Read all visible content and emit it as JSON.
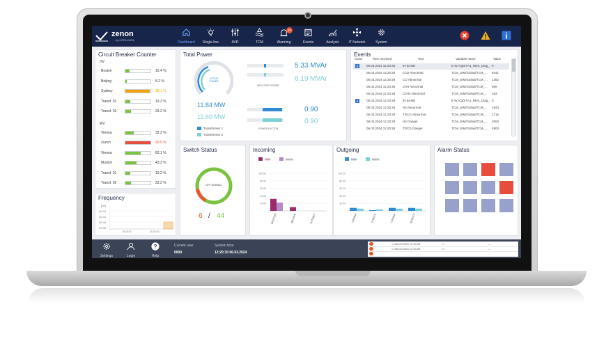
{
  "topbar": {
    "logo_text": "zenon",
    "logo_sub": "by COPA-DATA",
    "nav": [
      {
        "label": "Dashboard",
        "icon": "home-icon",
        "active": true
      },
      {
        "label": "Single line",
        "icon": "lightbulb-icon"
      },
      {
        "label": "AVR",
        "icon": "sliders-icon"
      },
      {
        "label": "TCM",
        "icon": "waves-icon"
      },
      {
        "label": "Alarming",
        "icon": "alarm-light-icon",
        "badge": "45"
      },
      {
        "label": "Events",
        "icon": "calendar-icon"
      },
      {
        "label": "Analysis",
        "icon": "chart-icon"
      },
      {
        "label": "IT Network",
        "icon": "network-icon"
      },
      {
        "label": "System",
        "icon": "gear-icon"
      }
    ]
  },
  "circuit_breaker": {
    "title": "Circuit Breaker Counter",
    "groups": [
      {
        "label": "HV",
        "rows": [
          {
            "name": "Boston",
            "value": "15.4 %",
            "pct": 15.4,
            "color": "#7cc242"
          },
          {
            "name": "Beijing",
            "value": "5.2 %",
            "pct": 5.2,
            "color": "#7cc242"
          },
          {
            "name": "Sydney",
            "value": "98.1 %",
            "pct": 98.1,
            "color": "#f0a30a"
          },
          {
            "name": "Transf. 01",
            "value": "19.2 %",
            "pct": 19.2,
            "color": "#7cc242"
          },
          {
            "name": "Transf. 02",
            "value": "23.2 %",
            "pct": 23.2,
            "color": "#7cc242"
          }
        ]
      },
      {
        "label": "MV",
        "rows": [
          {
            "name": "Vienna",
            "value": "33.2 %",
            "pct": 33.2,
            "color": "#7cc242"
          },
          {
            "name": "Zurich",
            "value": "99.5 %",
            "pct": 99.5,
            "color": "#e84c3d"
          },
          {
            "name": "Vienna",
            "value": "62.1 %",
            "pct": 62.1,
            "color": "#7cc242"
          },
          {
            "name": "Munich",
            "value": "43.2 %",
            "pct": 43.2,
            "color": "#7cc242"
          },
          {
            "name": "Transf. 01",
            "value": "19.2 %",
            "pct": 19.2,
            "color": "#7cc242"
          },
          {
            "name": "Transf. 02",
            "value": "23.2 %",
            "pct": 23.2,
            "color": "#7cc242"
          }
        ]
      }
    ]
  },
  "total_power": {
    "title": "Total Power",
    "gauge_label": "ACTIVE POWER",
    "active_mw_1": "11.84 MW",
    "active_mw_2": "11.60 MW",
    "reactive_1": "5.33 MVAr",
    "reactive_2": "6.19 MVAr",
    "reactive_label": "REACTIVE POWER",
    "pf_1": "0.90",
    "pf_2": "0.90",
    "pf_label": "POWER FACTOR",
    "legend": [
      "Transformer 1",
      "Transformer 2"
    ],
    "colors": {
      "t1": "#2e8bd4",
      "t2": "#7fcfd6"
    }
  },
  "events": {
    "title": "Events",
    "columns": [
      "Class",
      "Time received",
      "Text",
      "Variable name",
      "Value"
    ],
    "rows": [
      {
        "icon": true,
        "time": "06.03.2024 12:20:30",
        "text": "IN BAND",
        "var": "E.W.YQDITA1_REG_Diag_...",
        "val": "0"
      },
      {
        "icon": false,
        "time": "06.03.2024 12:20:28",
        "text": "CO2 Abnormal",
        "var": "TCM_SIM/Global/TCM_...",
        "val": "8441"
      },
      {
        "icon": false,
        "time": "06.03.2024 12:20:28",
        "text": "CO Abnormal",
        "var": "TCM_SIM/Global/TCM_...",
        "val": "1362"
      },
      {
        "icon": false,
        "time": "06.03.2024 12:20:28",
        "text": "CH4 Abnormal",
        "var": "TCM_SIM/Global/TCM_...",
        "val": "666"
      },
      {
        "icon": false,
        "time": "06.03.2024 12:20:28",
        "text": "C2H4 Abnormal",
        "var": "TCM_SIM/Global/TCM_...",
        "val": "163"
      },
      {
        "icon": true,
        "time": "06.03.2024 12:20:28",
        "text": "IN BAND",
        "var": "E.W.YQDITA1_REG_Diag_...",
        "val": "0"
      },
      {
        "icon": false,
        "time": "06.03.2024 12:20:28",
        "text": "H2 Abnormal",
        "var": "TCM_SIM/Global/TCM_...",
        "val": "1543"
      },
      {
        "icon": false,
        "time": "06.03.2024 12:20:28",
        "text": "TDCG Abnormal",
        "var": "TCM_SIM/Global/TCM_...",
        "val": "1716"
      },
      {
        "icon": false,
        "time": "06.03.2024 12:20:28",
        "text": "H2 Danger",
        "var": "TCM_SIM/Global/TCM_...",
        "val": "2500"
      },
      {
        "icon": false,
        "time": "06.03.2024 12:20:28",
        "text": "TDCG Danger",
        "var": "TCM_SIM/Global/TCM_...",
        "val": "4903"
      }
    ]
  },
  "frequency": {
    "title": "Frequency",
    "y_ticks": [
      "[Hz]",
      "50.04",
      "50.02",
      "50.00",
      "49.98"
    ],
    "x_ticks": [
      "15:18:00",
      "15:20:00"
    ]
  },
  "switch_status": {
    "title": "Switch Status",
    "center_label": "OFF-NORMAL",
    "count_off": "6",
    "separator": "/",
    "count_total": "44",
    "off_fraction": 0.136
  },
  "incoming": {
    "title": "Incoming",
    "chart_data": {
      "type": "bar",
      "categories": [
        "BOSTON",
        "BEIJING",
        "SYDNEY"
      ],
      "series": [
        {
          "name": "MW",
          "color": "#9a2a6a",
          "values": [
            32,
            10,
            0
          ]
        },
        {
          "name": "MVAr",
          "color": "#b48ac9",
          "values": [
            22,
            0,
            0
          ]
        }
      ],
      "y_ticks": [
        "100.00",
        "80.00",
        "60.00",
        "40.00",
        "20.00"
      ],
      "ylim": [
        0,
        100
      ]
    }
  },
  "outgoing": {
    "title": "Outgoing",
    "chart_data": {
      "type": "bar",
      "categories": [
        "VIENNA",
        "ZURICH",
        "VIENNA",
        "MUNICH"
      ],
      "series": [
        {
          "name": "MW",
          "color": "#2e8bd4",
          "values": [
            8,
            2,
            8,
            8
          ]
        },
        {
          "name": "MVAr",
          "color": "#7fcfd6",
          "values": [
            6,
            4,
            6,
            6
          ]
        }
      ],
      "y_ticks": [
        "100.00",
        "80.00",
        "60.00",
        "40.00",
        "20.00"
      ],
      "ylim": [
        0,
        100
      ]
    }
  },
  "alarm_status": {
    "title": "Alarm Status",
    "tiles": [
      "#98a1cc",
      "#98a1cc",
      "#e84c3d",
      "#98a1cc",
      "#98a1cc",
      "#98a1cc",
      "#98a1cc",
      "#e84c3d",
      "#98a1cc",
      "#98a1cc",
      "#98a1cc",
      "#98a1cc"
    ]
  },
  "bottombar": {
    "settings": "Settings",
    "login": "Login",
    "help": "Help",
    "current_user_label": "Current user",
    "current_user": "0000",
    "system_time_label": "System time",
    "system_time": "12:20:30 06.03.2024",
    "alarms": [
      {
        "time": "<<06.03.2024 12:20:28",
        "a": "<<",
        "b": "—"
      },
      {
        "time": "<<06.03.2024 12:20:28",
        "a": "<<",
        "b": "—"
      },
      {
        "time": "",
        "a": "",
        "b": ""
      }
    ]
  }
}
